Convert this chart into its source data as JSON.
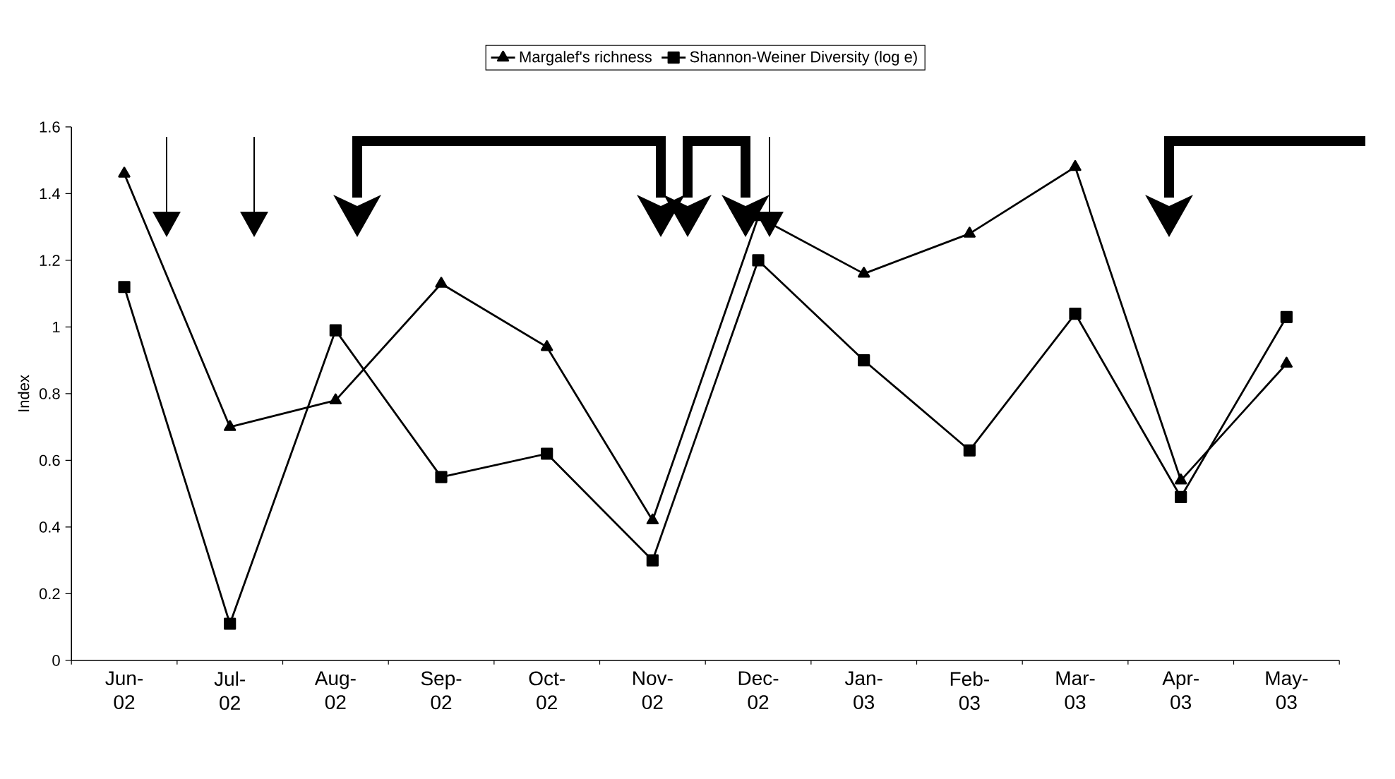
{
  "chart_data": {
    "type": "line",
    "ylabel": "Index",
    "categories": [
      "Jun-02",
      "Jul-02",
      "Aug-02",
      "Sep-02",
      "Oct-02",
      "Nov-02",
      "Dec-02",
      "Jan-03",
      "Feb-03",
      "Mar-03",
      "Apr-03",
      "May-03"
    ],
    "series": [
      {
        "name": "Margalef's richness",
        "color": "#000000",
        "marker": "triangle",
        "values": [
          1.46,
          0.7,
          0.78,
          1.13,
          0.94,
          0.42,
          1.33,
          1.16,
          1.28,
          1.48,
          0.54,
          0.89
        ]
      },
      {
        "name": "Shannon-Weiner Diversity (log e)",
        "color": "#000000",
        "marker": "square",
        "values": [
          1.12,
          0.11,
          0.99,
          0.55,
          0.62,
          0.3,
          1.2,
          0.9,
          0.63,
          1.04,
          0.49,
          1.03
        ]
      }
    ],
    "ylim": [
      0,
      1.6
    ],
    "yticks": [
      0,
      0.2,
      0.4,
      0.6,
      0.8,
      1,
      1.2,
      1.4,
      1.6
    ],
    "grid": false,
    "legend": "top",
    "line_style": "solid"
  }
}
